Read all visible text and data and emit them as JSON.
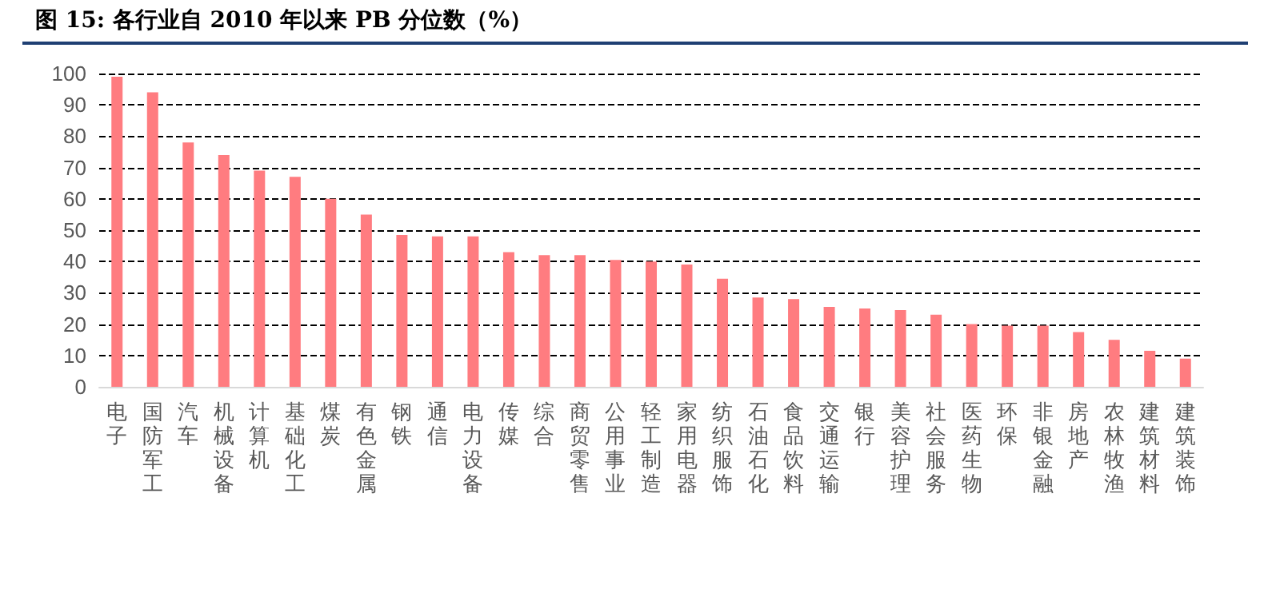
{
  "chart_data": {
    "type": "bar",
    "title": "图 15: 各行业自 2010 年以来 PB 分位数（%）",
    "categories": [
      "电子",
      "国防军工",
      "汽车",
      "机械设备",
      "计算机",
      "基础化工",
      "煤炭",
      "有色金属",
      "钢铁",
      "通信",
      "电力设备",
      "传媒",
      "综合",
      "商贸零售",
      "公用事业",
      "轻工制造",
      "家用电器",
      "纺织服饰",
      "石油石化",
      "食品饮料",
      "交通运输",
      "银行",
      "美容护理",
      "社会服务",
      "医药生物",
      "环保",
      "非银金融",
      "房地产",
      "农林牧渔",
      "建筑材料",
      "建筑装饰"
    ],
    "values": [
      99,
      94,
      78,
      74,
      69,
      67,
      60,
      55,
      48.5,
      48,
      48,
      43,
      42,
      42,
      40.5,
      40,
      39,
      34.5,
      28.5,
      28,
      25.5,
      25,
      24.5,
      23,
      20,
      19.5,
      19.5,
      17.5,
      15,
      11.5,
      9
    ],
    "color": "#ff7c80",
    "ylim": [
      0,
      100
    ],
    "yticks": [
      0,
      10,
      20,
      30,
      40,
      50,
      60,
      70,
      80,
      90,
      100
    ],
    "grid": "y",
    "line_style": "dashed"
  }
}
